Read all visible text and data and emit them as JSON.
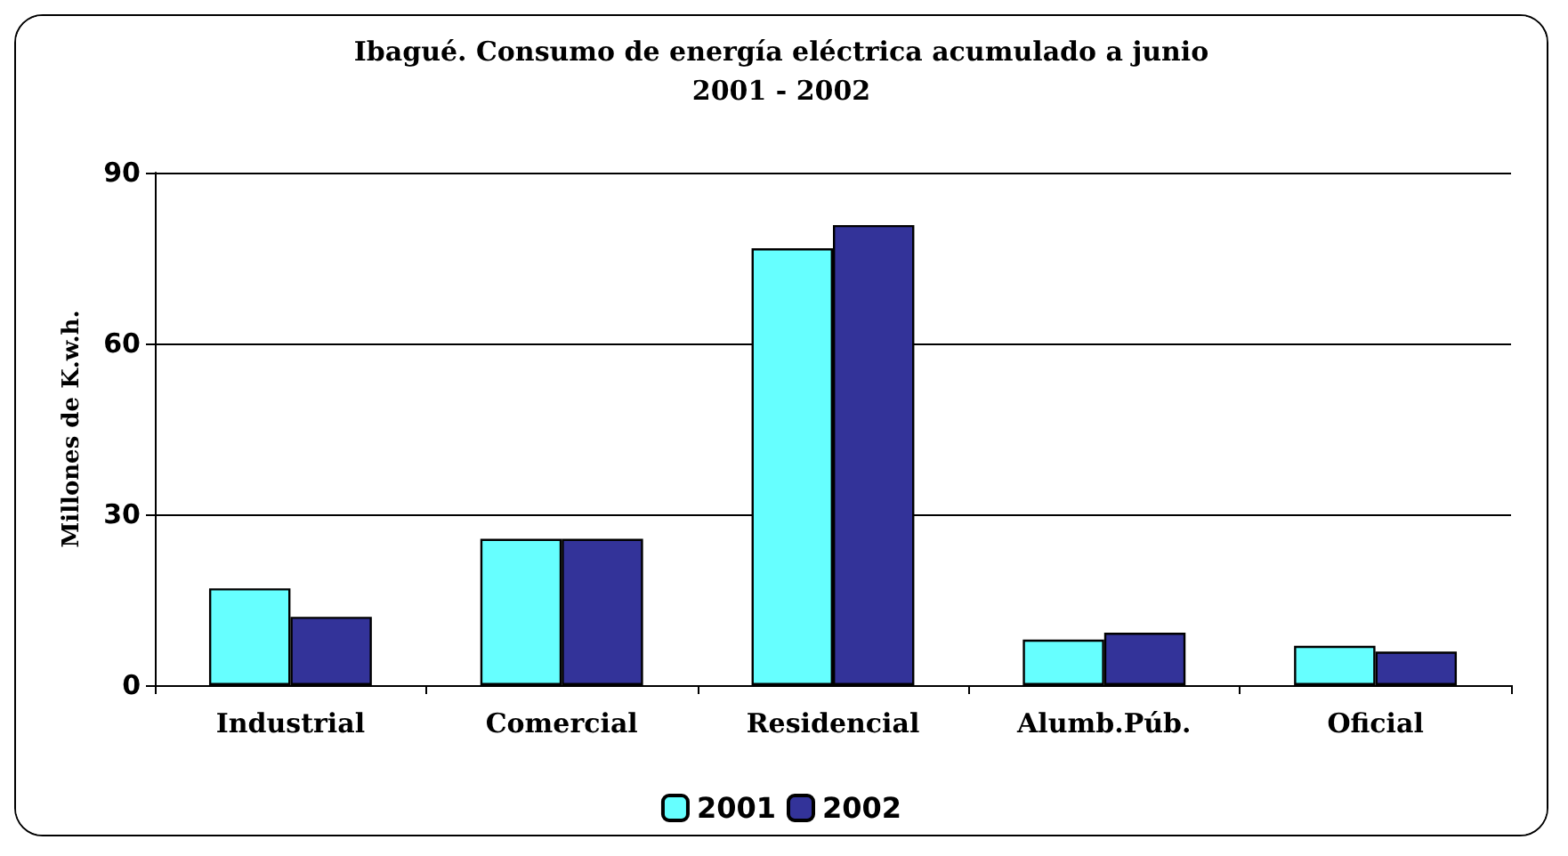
{
  "chart_data": {
    "type": "bar",
    "title": "Ibagué. Consumo de energía eléctrica acumulado a junio\n2001 - 2002",
    "ylabel": "Millones de K.w.h.",
    "categories": [
      "Industrial",
      "Comercial",
      "Residencial",
      "Alumb.Púb.",
      "Oficial"
    ],
    "series": [
      {
        "name": "2001",
        "color": "#66ffff",
        "values": [
          17,
          25.7,
          76.7,
          8,
          6.9
        ]
      },
      {
        "name": "2002",
        "color": "#333399",
        "values": [
          12,
          25.7,
          80.8,
          9.2,
          5.9
        ]
      }
    ],
    "ylim": [
      0,
      90
    ],
    "yticks": [
      0,
      30,
      60,
      90
    ],
    "grid": "y",
    "legend": "bottom"
  }
}
